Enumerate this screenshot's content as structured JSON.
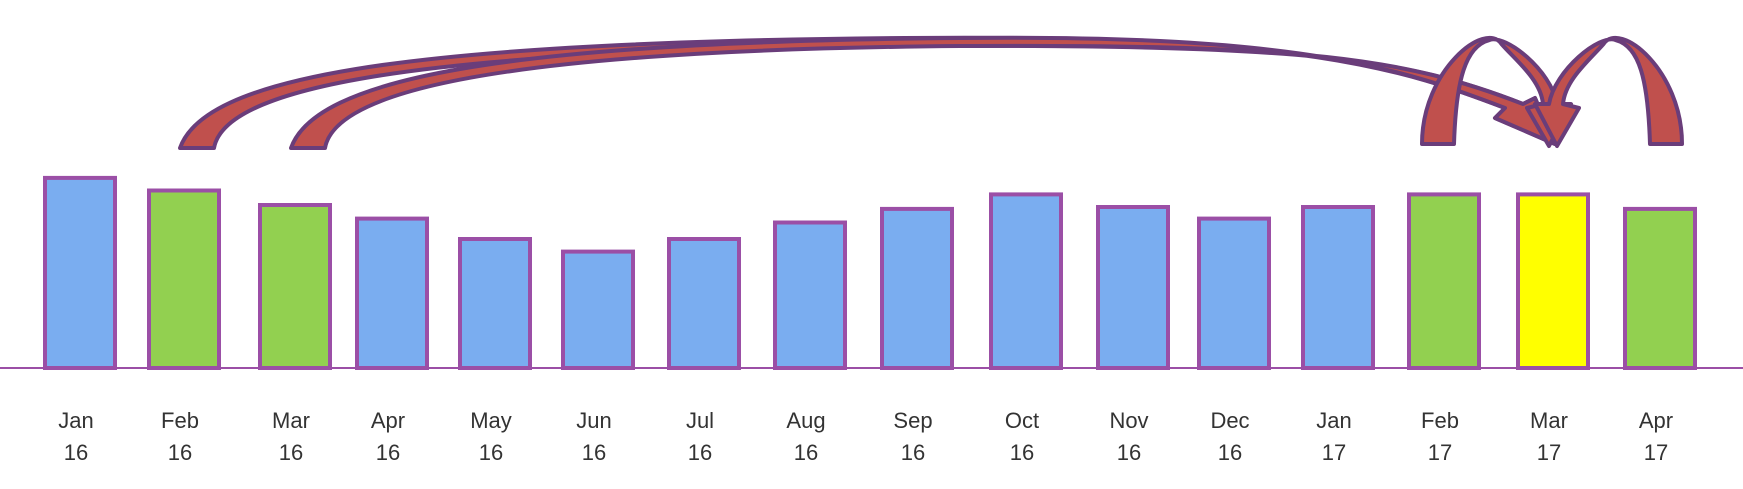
{
  "chart_data": {
    "type": "bar",
    "title": "",
    "xlabel": "",
    "ylabel": "",
    "grid": false,
    "legend": "none",
    "categories": [
      [
        "Jan",
        "16"
      ],
      [
        "Feb",
        "16"
      ],
      [
        "Mar",
        "16"
      ],
      [
        "Apr",
        "16"
      ],
      [
        "May",
        "16"
      ],
      [
        "Jun",
        "16"
      ],
      [
        "Jul",
        "16"
      ],
      [
        "Aug",
        "16"
      ],
      [
        "Sep",
        "16"
      ],
      [
        "Oct",
        "16"
      ],
      [
        "Nov",
        "16"
      ],
      [
        "Dec",
        "16"
      ],
      [
        "Jan",
        "17"
      ],
      [
        "Feb",
        "17"
      ],
      [
        "Mar",
        "17"
      ],
      [
        "Apr",
        "17"
      ]
    ],
    "values": [
      196,
      183,
      168,
      154,
      133,
      120,
      133,
      150,
      164,
      179,
      166,
      154,
      166,
      179,
      179,
      164
    ],
    "bar_colors": [
      "#7aadf0",
      "#92d050",
      "#92d050",
      "#7aadf0",
      "#7aadf0",
      "#7aadf0",
      "#7aadf0",
      "#7aadf0",
      "#7aadf0",
      "#7aadf0",
      "#7aadf0",
      "#7aadf0",
      "#7aadf0",
      "#92d050",
      "#ffff00",
      "#92d050"
    ],
    "ylim": [
      0,
      200
    ],
    "annotations": [
      {
        "type": "arrow",
        "from": "Feb 16",
        "to": "Mar 17"
      },
      {
        "type": "arrow",
        "from": "Mar 16",
        "to": "Mar 17"
      },
      {
        "type": "arrow",
        "from": "Feb 17",
        "to": "Mar 17"
      },
      {
        "type": "arrow",
        "from": "Apr 17",
        "to": "Mar 17"
      }
    ]
  },
  "colors": {
    "bar_blue": "#7aadf0",
    "bar_green": "#92d050",
    "bar_yellow": "#ffff00",
    "bar_outline": "#9b4fa6",
    "axis": "#9b4fa6",
    "arrow_fill": "#c0504d",
    "arrow_outline": "#6a3d7a",
    "arrow_highlight": "#f06a65"
  }
}
